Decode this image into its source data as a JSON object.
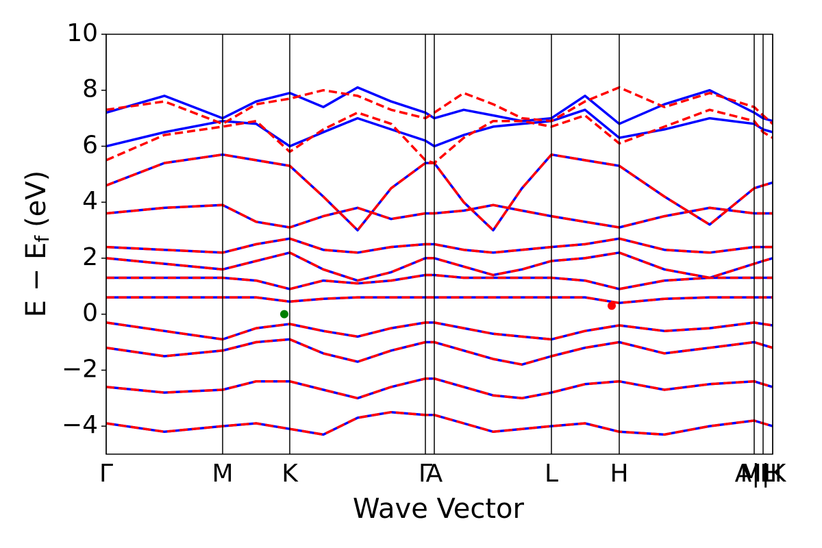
{
  "chart_data": {
    "type": "line",
    "xlabel": "Wave Vector",
    "ylabel": {
      "main": "E − E",
      "sub": "f",
      "unit": "(eV)"
    },
    "xlim": [
      0,
      9.73
    ],
    "ylim": [
      -5,
      10
    ],
    "yticks": [
      {
        "value": -4,
        "label": "−4"
      },
      {
        "value": -2,
        "label": "−2"
      },
      0,
      2,
      4,
      6,
      8,
      10
    ],
    "xticks": [
      {
        "value": 0,
        "label": "Γ"
      },
      {
        "value": 1.7,
        "label": "M"
      },
      {
        "value": 2.68,
        "label": "K"
      },
      {
        "value": 4.66,
        "label": "Γ"
      },
      {
        "value": 4.79,
        "label": "A"
      },
      {
        "value": 6.5,
        "label": "L"
      },
      {
        "value": 7.49,
        "label": "H"
      },
      {
        "value": 9.46,
        "label": "A|L"
      },
      {
        "value": 9.59,
        "label": "M|K"
      },
      {
        "value": 9.73,
        "label": "H"
      }
    ],
    "x": [
      0,
      0.85,
      1.7,
      2.19,
      2.68,
      3.17,
      3.67,
      4.16,
      4.66,
      4.79,
      5.22,
      5.65,
      6.07,
      6.5,
      6.99,
      7.49,
      8.15,
      8.81,
      9.46,
      9.59,
      9.73
    ],
    "series": [
      {
        "color": "#0000ff",
        "dashed": false,
        "values": [
          0.6,
          0.6,
          0.6,
          0.6,
          0.45,
          0.55,
          0.6,
          0.6,
          0.6,
          0.6,
          0.6,
          0.6,
          0.6,
          0.6,
          0.6,
          0.4,
          0.55,
          0.6,
          0.6,
          0.6,
          0.6
        ]
      },
      {
        "color": "#0000ff",
        "dashed": false,
        "values": [
          -0.3,
          -0.6,
          -0.9,
          -0.5,
          -0.35,
          -0.6,
          -0.8,
          -0.5,
          -0.3,
          -0.3,
          -0.5,
          -0.7,
          -0.8,
          -0.9,
          -0.6,
          -0.4,
          -0.6,
          -0.5,
          -0.3,
          -0.35,
          -0.4
        ]
      },
      {
        "color": "#0000ff",
        "dashed": false,
        "values": [
          -1.2,
          -1.5,
          -1.3,
          -1.0,
          -0.9,
          -1.4,
          -1.7,
          -1.3,
          -1.0,
          -1.0,
          -1.3,
          -1.6,
          -1.8,
          -1.5,
          -1.2,
          -1.0,
          -1.4,
          -1.2,
          -1.0,
          -1.1,
          -1.2
        ]
      },
      {
        "color": "#0000ff",
        "dashed": false,
        "values": [
          -2.6,
          -2.8,
          -2.7,
          -2.4,
          -2.4,
          -2.7,
          -3.0,
          -2.6,
          -2.3,
          -2.3,
          -2.6,
          -2.9,
          -3.0,
          -2.8,
          -2.5,
          -2.4,
          -2.7,
          -2.5,
          -2.4,
          -2.5,
          -2.6
        ]
      },
      {
        "color": "#0000ff",
        "dashed": false,
        "values": [
          -3.9,
          -4.2,
          -4.0,
          -3.9,
          -4.1,
          -4.3,
          -3.7,
          -3.5,
          -3.6,
          -3.6,
          -3.9,
          -4.2,
          -4.1,
          -4.0,
          -3.9,
          -4.2,
          -4.3,
          -4.0,
          -3.8,
          -3.9,
          -4.0
        ]
      },
      {
        "color": "#0000ff",
        "dashed": false,
        "values": [
          1.3,
          1.3,
          1.3,
          1.2,
          0.9,
          1.2,
          1.1,
          1.2,
          1.4,
          1.4,
          1.3,
          1.3,
          1.3,
          1.3,
          1.2,
          0.9,
          1.2,
          1.3,
          1.3,
          1.3,
          1.3
        ]
      },
      {
        "color": "#0000ff",
        "dashed": false,
        "values": [
          2.0,
          1.8,
          1.6,
          1.9,
          2.2,
          1.6,
          1.2,
          1.5,
          2.0,
          2.0,
          1.7,
          1.4,
          1.6,
          1.9,
          2.0,
          2.2,
          1.6,
          1.3,
          1.8,
          1.9,
          2.0
        ]
      },
      {
        "color": "#0000ff",
        "dashed": false,
        "values": [
          2.4,
          2.3,
          2.2,
          2.5,
          2.7,
          2.3,
          2.2,
          2.4,
          2.5,
          2.5,
          2.3,
          2.2,
          2.3,
          2.4,
          2.5,
          2.7,
          2.3,
          2.2,
          2.4,
          2.4,
          2.4
        ]
      },
      {
        "color": "#0000ff",
        "dashed": false,
        "values": [
          3.6,
          3.8,
          3.9,
          3.3,
          3.1,
          3.5,
          3.8,
          3.4,
          3.6,
          3.6,
          3.7,
          3.9,
          3.7,
          3.5,
          3.3,
          3.1,
          3.5,
          3.8,
          3.6,
          3.6,
          3.6
        ]
      },
      {
        "color": "#0000ff",
        "dashed": false,
        "values": [
          4.6,
          5.4,
          5.7,
          5.5,
          5.3,
          4.2,
          3.0,
          4.5,
          5.4,
          5.4,
          4.0,
          3.0,
          4.5,
          5.7,
          5.5,
          5.3,
          4.2,
          3.2,
          4.5,
          4.6,
          4.7
        ]
      },
      {
        "color": "#0000ff",
        "dashed": false,
        "values": [
          6.0,
          6.5,
          6.9,
          6.8,
          6.0,
          6.5,
          7.0,
          6.6,
          6.2,
          6.0,
          6.4,
          6.7,
          6.8,
          6.9,
          7.3,
          6.3,
          6.6,
          7.0,
          6.8,
          6.6,
          6.5
        ]
      },
      {
        "color": "#0000ff",
        "dashed": false,
        "values": [
          7.2,
          7.8,
          7.0,
          7.6,
          7.9,
          7.4,
          8.1,
          7.6,
          7.2,
          7.0,
          7.3,
          7.1,
          6.9,
          7.0,
          7.8,
          6.8,
          7.5,
          8.0,
          7.2,
          7.0,
          6.9
        ]
      },
      {
        "color": "#ff0000",
        "dashed": true,
        "values": [
          0.6,
          0.6,
          0.6,
          0.6,
          0.45,
          0.55,
          0.6,
          0.6,
          0.6,
          0.6,
          0.6,
          0.6,
          0.6,
          0.6,
          0.6,
          0.4,
          0.55,
          0.6,
          0.6,
          0.6,
          0.6
        ]
      },
      {
        "color": "#ff0000",
        "dashed": true,
        "values": [
          -0.3,
          -0.6,
          -0.9,
          -0.5,
          -0.35,
          -0.6,
          -0.8,
          -0.5,
          -0.3,
          -0.3,
          -0.5,
          -0.7,
          -0.8,
          -0.9,
          -0.6,
          -0.4,
          -0.6,
          -0.5,
          -0.3,
          -0.35,
          -0.4
        ]
      },
      {
        "color": "#ff0000",
        "dashed": true,
        "values": [
          -1.2,
          -1.5,
          -1.3,
          -1.0,
          -0.9,
          -1.4,
          -1.7,
          -1.3,
          -1.0,
          -1.0,
          -1.3,
          -1.6,
          -1.8,
          -1.5,
          -1.2,
          -1.0,
          -1.4,
          -1.2,
          -1.0,
          -1.1,
          -1.2
        ]
      },
      {
        "color": "#ff0000",
        "dashed": true,
        "values": [
          -2.6,
          -2.8,
          -2.7,
          -2.4,
          -2.4,
          -2.7,
          -3.0,
          -2.6,
          -2.3,
          -2.3,
          -2.6,
          -2.9,
          -3.0,
          -2.8,
          -2.5,
          -2.4,
          -2.7,
          -2.5,
          -2.4,
          -2.5,
          -2.6
        ]
      },
      {
        "color": "#ff0000",
        "dashed": true,
        "values": [
          -3.9,
          -4.2,
          -4.0,
          -3.9,
          -4.1,
          -4.3,
          -3.7,
          -3.5,
          -3.6,
          -3.6,
          -3.9,
          -4.2,
          -4.1,
          -4.0,
          -3.9,
          -4.2,
          -4.3,
          -4.0,
          -3.8,
          -3.9,
          -4.0
        ]
      },
      {
        "color": "#ff0000",
        "dashed": true,
        "values": [
          1.3,
          1.3,
          1.3,
          1.2,
          0.9,
          1.2,
          1.1,
          1.2,
          1.4,
          1.4,
          1.3,
          1.3,
          1.3,
          1.3,
          1.2,
          0.9,
          1.2,
          1.3,
          1.3,
          1.3,
          1.3
        ]
      },
      {
        "color": "#ff0000",
        "dashed": true,
        "values": [
          2.0,
          1.8,
          1.6,
          1.9,
          2.2,
          1.6,
          1.2,
          1.5,
          2.0,
          2.0,
          1.7,
          1.4,
          1.6,
          1.9,
          2.0,
          2.2,
          1.6,
          1.3,
          1.8,
          1.9,
          2.0
        ]
      },
      {
        "color": "#ff0000",
        "dashed": true,
        "values": [
          2.4,
          2.3,
          2.2,
          2.5,
          2.7,
          2.3,
          2.2,
          2.4,
          2.5,
          2.5,
          2.3,
          2.2,
          2.3,
          2.4,
          2.5,
          2.7,
          2.3,
          2.2,
          2.4,
          2.4,
          2.4
        ]
      },
      {
        "color": "#ff0000",
        "dashed": true,
        "values": [
          3.6,
          3.8,
          3.9,
          3.3,
          3.1,
          3.5,
          3.8,
          3.4,
          3.6,
          3.6,
          3.7,
          3.9,
          3.7,
          3.5,
          3.3,
          3.1,
          3.5,
          3.8,
          3.6,
          3.6,
          3.6
        ]
      },
      {
        "color": "#ff0000",
        "dashed": true,
        "values": [
          4.6,
          5.4,
          5.7,
          5.5,
          5.3,
          4.2,
          3.0,
          4.5,
          5.4,
          5.4,
          4.0,
          3.0,
          4.5,
          5.7,
          5.5,
          5.3,
          4.2,
          3.2,
          4.5,
          4.6,
          4.7
        ]
      },
      {
        "color": "#ff0000",
        "dashed": true,
        "values": [
          5.5,
          6.4,
          6.7,
          6.9,
          5.8,
          6.6,
          7.2,
          6.8,
          5.5,
          5.4,
          6.3,
          6.9,
          6.9,
          6.7,
          7.1,
          6.1,
          6.7,
          7.3,
          6.9,
          6.5,
          6.3
        ]
      },
      {
        "color": "#ff0000",
        "dashed": true,
        "values": [
          7.3,
          7.6,
          6.8,
          7.5,
          7.7,
          8.0,
          7.8,
          7.3,
          7.0,
          7.2,
          7.9,
          7.5,
          7.0,
          6.9,
          7.6,
          8.1,
          7.4,
          7.9,
          7.4,
          7.1,
          6.8
        ]
      }
    ],
    "points": [
      {
        "x": 2.6,
        "y": 0.0,
        "color": "#008000"
      },
      {
        "x": 7.38,
        "y": 0.3,
        "color": "#ff0000"
      }
    ]
  }
}
